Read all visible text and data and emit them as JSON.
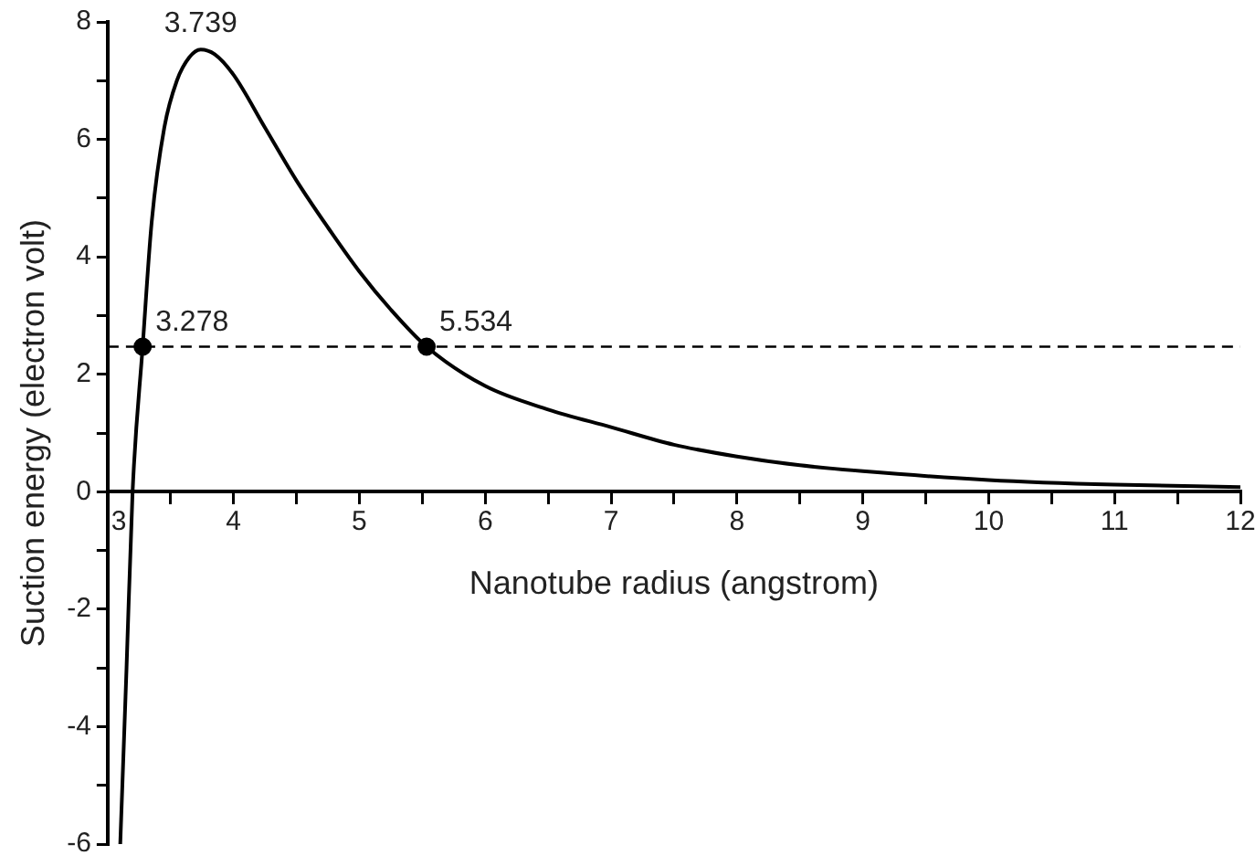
{
  "chart_data": {
    "type": "line",
    "xlabel": "Nanotube radius (angstrom)",
    "ylabel": "Suction energy (electron volt)",
    "x": [
      3.1,
      3.15,
      3.198,
      3.278,
      3.35,
      3.45,
      3.55,
      3.65,
      3.739,
      3.85,
      4.0,
      4.25,
      4.5,
      4.75,
      5.0,
      5.25,
      5.534,
      6.0,
      6.5,
      7.0,
      7.5,
      8.0,
      8.5,
      9.0,
      10.0,
      11.0,
      12.0
    ],
    "series": [
      {
        "color": "#000000",
        "values": [
          -6,
          -3,
          0,
          2.47,
          4.6,
          6.2,
          7.0,
          7.4,
          7.53,
          7.45,
          7.1,
          6.2,
          5.3,
          4.5,
          3.75,
          3.1,
          2.47,
          1.8,
          1.4,
          1.1,
          0.8,
          0.6,
          0.45,
          0.35,
          0.2,
          0.12,
          0.08
        ]
      },
      {
        "type": "scatter",
        "color": "#000000",
        "x": [
          3.278,
          5.534
        ],
        "values": [
          2.47,
          2.47
        ],
        "marker": "circle"
      }
    ],
    "xlim": [
      3,
      12
    ],
    "ylim": [
      -6,
      8
    ],
    "xticks": [
      3,
      {
        "value": 3.5,
        "label": null
      },
      4,
      {
        "value": 4.5,
        "label": null
      },
      5,
      {
        "value": 5.5,
        "label": null
      },
      6,
      {
        "value": 6.5,
        "label": null
      },
      7,
      {
        "value": 7.5,
        "label": null
      },
      8,
      {
        "value": 8.5,
        "label": null
      },
      9,
      {
        "value": 9.5,
        "label": null
      },
      10,
      {
        "value": 10.5,
        "label": null
      },
      11,
      {
        "value": 11.5,
        "label": null
      },
      12
    ],
    "yticks": [
      -6,
      {
        "value": -5,
        "label": null
      },
      -4,
      {
        "value": -3,
        "label": null
      },
      -2,
      {
        "value": -1,
        "label": null
      },
      0,
      {
        "value": 1,
        "label": null
      },
      2,
      {
        "value": 3,
        "label": null
      },
      4,
      {
        "value": 5,
        "label": null
      },
      6,
      {
        "value": 7,
        "label": null
      },
      8
    ],
    "ref_lines": [
      {
        "axis": "y",
        "value": 2.47,
        "color": "#000000",
        "line_style": "dashed"
      }
    ],
    "annotations": [
      {
        "text": "3.739",
        "x": 3.739,
        "y": 7.53
      },
      {
        "text": "3.278",
        "x": 3.278,
        "y": 2.47
      },
      {
        "text": "5.534",
        "x": 5.534,
        "y": 2.47
      }
    ],
    "grid": false,
    "legend": false,
    "marker": "none",
    "line_style": "solid"
  }
}
